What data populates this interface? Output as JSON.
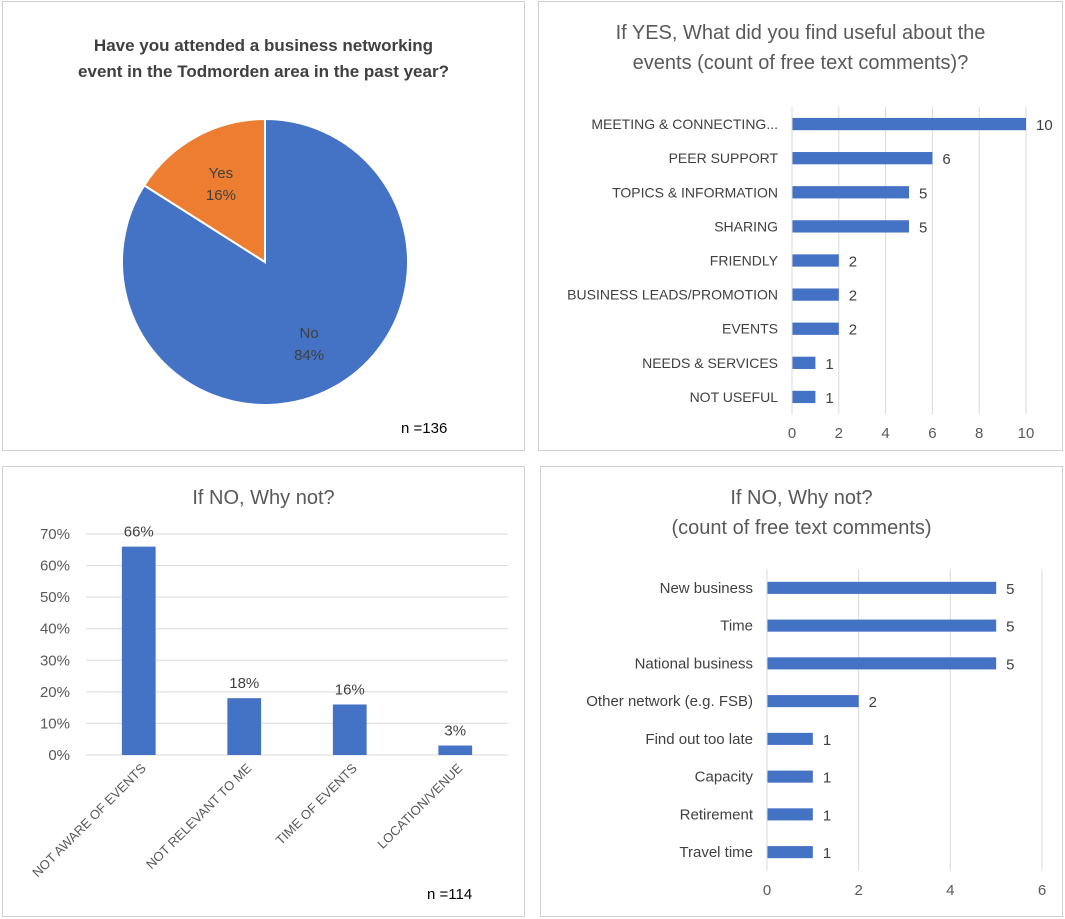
{
  "chart_data": [
    {
      "type": "pie",
      "title": "Have you attended a business networking event in the Todmorden area in the past year?",
      "title_lines": [
        "Have you attended a business networking",
        "event in the Todmorden area in the past year?"
      ],
      "slices": [
        {
          "label": "No",
          "value": 84,
          "value_label": "84%",
          "color": "#4472C4"
        },
        {
          "label": "Yes",
          "value": 16,
          "value_label": "16%",
          "color": "#ED7D31"
        }
      ],
      "note": "n =136"
    },
    {
      "type": "bar",
      "orientation": "horizontal",
      "title": "If YES, What did you find useful about the events (count of free text comments)?",
      "title_lines": [
        "If YES, What did you find useful about the",
        "events (count of free text comments)?"
      ],
      "categories": [
        "MEETING & CONNECTING...",
        "PEER SUPPORT",
        "TOPICS & INFORMATION",
        "SHARING",
        "FRIENDLY",
        "BUSINESS LEADS/PROMOTION",
        "EVENTS",
        "NEEDS & SERVICES",
        "NOT USEFUL"
      ],
      "values": [
        10,
        6,
        5,
        5,
        2,
        2,
        2,
        1,
        1
      ],
      "xlim": [
        0,
        10
      ],
      "ticks": [
        0,
        2,
        4,
        6,
        8,
        10
      ],
      "grid": true,
      "color": "#4472C4"
    },
    {
      "type": "bar",
      "orientation": "vertical",
      "title": "If NO, Why not?",
      "title_lines": [
        "If NO, Why not?"
      ],
      "categories": [
        "NOT AWARE OF EVENTS",
        "NOT RELEVANT TO ME",
        "TIME OF EVENTS",
        "LOCATION/VENUE"
      ],
      "values": [
        66,
        18,
        16,
        3
      ],
      "value_labels": [
        "66%",
        "18%",
        "16%",
        "3%"
      ],
      "ylim": [
        0,
        70
      ],
      "ticks": [
        "0%",
        "10%",
        "20%",
        "30%",
        "40%",
        "50%",
        "60%",
        "70%"
      ],
      "grid": true,
      "color": "#4472C4",
      "note": "n =114"
    },
    {
      "type": "bar",
      "orientation": "horizontal",
      "title": "If NO, Why not? (count of free text comments)",
      "title_lines": [
        "If NO, Why not?",
        "(count of free text comments)"
      ],
      "categories": [
        "New business",
        "Time",
        "National business",
        "Other network (e.g. FSB)",
        "Find out too late",
        "Capacity",
        "Retirement",
        "Travel time"
      ],
      "values": [
        5,
        5,
        5,
        2,
        1,
        1,
        1,
        1
      ],
      "xlim": [
        0,
        6
      ],
      "ticks": [
        0,
        2,
        4,
        6
      ],
      "grid": true,
      "color": "#4472C4"
    }
  ]
}
